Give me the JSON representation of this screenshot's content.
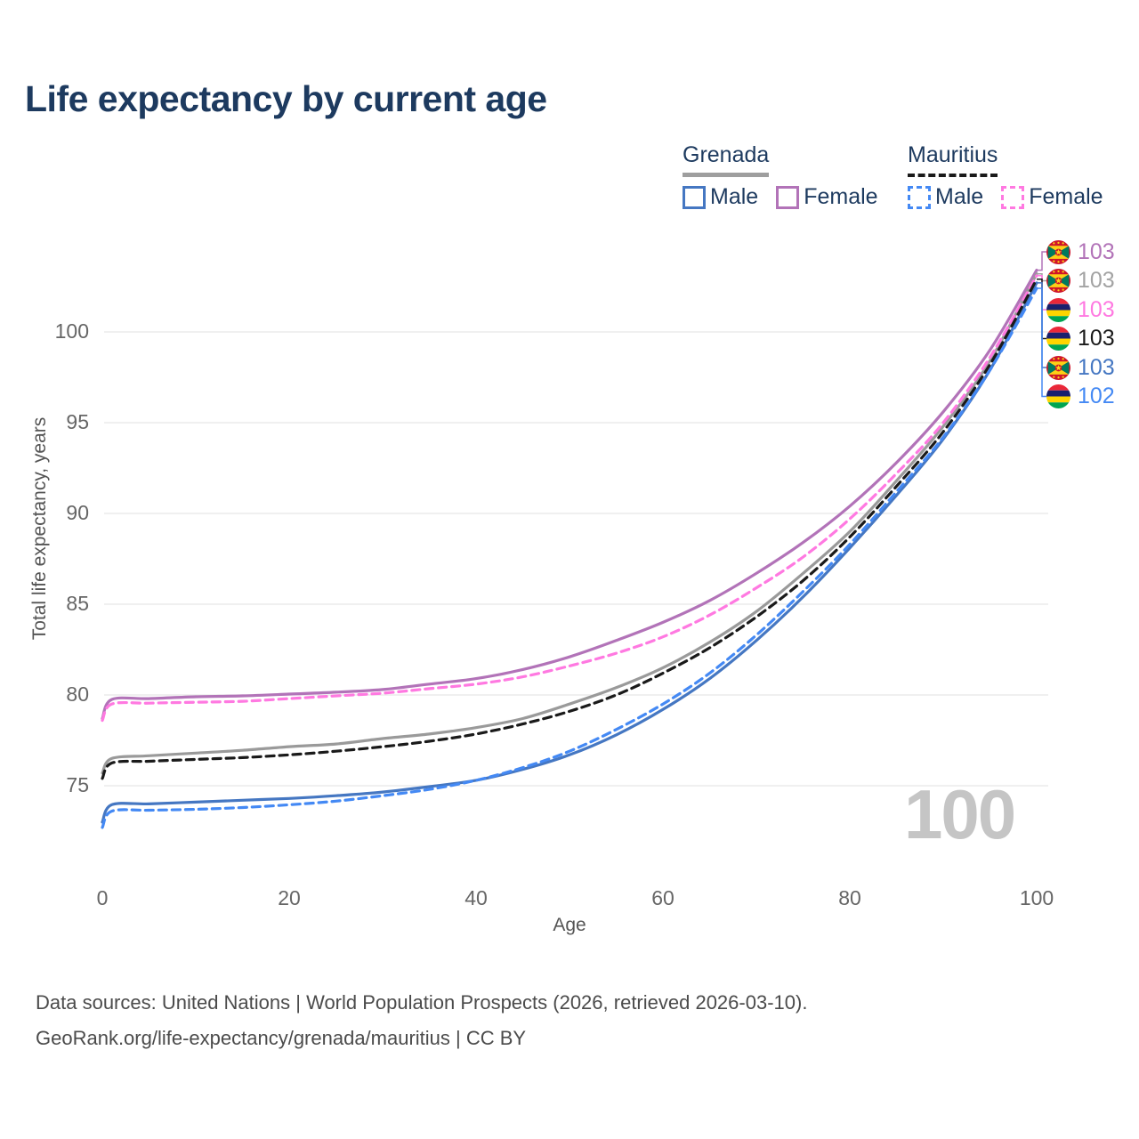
{
  "title": "Life expectancy by current age",
  "legend": {
    "groups": [
      {
        "label": "Grenada",
        "line_style": "solid",
        "underline_color": "#9e9e9e",
        "items": [
          {
            "label": "Male",
            "color": "#4577c2",
            "dashed": false
          },
          {
            "label": "Female",
            "color": "#b273b8",
            "dashed": false
          }
        ]
      },
      {
        "label": "Mauritius",
        "line_style": "dashed",
        "underline_color": "#1a1a1a",
        "items": [
          {
            "label": "Male",
            "color": "#4489f4",
            "dashed": true
          },
          {
            "label": "Female",
            "color": "#ff79e1",
            "dashed": true
          }
        ]
      }
    ]
  },
  "axes": {
    "x": {
      "title": "Age",
      "ticks": [
        0,
        20,
        40,
        60,
        80,
        100
      ]
    },
    "y": {
      "title": "Total life expectancy, years",
      "ticks": [
        75,
        80,
        85,
        90,
        95,
        100
      ]
    }
  },
  "age_indicator": "100",
  "chart_data": {
    "type": "line",
    "title": "Life expectancy by current age",
    "xlabel": "Age",
    "ylabel": "Total life expectancy, years",
    "xlim": [
      0,
      100
    ],
    "ylim": [
      72,
      104
    ],
    "grid": "horizontal",
    "legend_position": "top-right",
    "x": [
      0,
      1,
      5,
      10,
      15,
      20,
      25,
      30,
      35,
      40,
      45,
      50,
      55,
      60,
      65,
      70,
      75,
      80,
      85,
      90,
      95,
      100
    ],
    "series": [
      {
        "name": "grenada-female",
        "country": "Grenada",
        "sex": "Female",
        "color": "#b273b8",
        "dashed": false,
        "values": [
          78.7,
          79.75,
          79.8,
          79.9,
          79.95,
          80.05,
          80.15,
          80.3,
          80.6,
          80.9,
          81.4,
          82.1,
          83.0,
          84.0,
          85.2,
          86.7,
          88.4,
          90.4,
          92.8,
          95.6,
          99.0,
          103.4
        ]
      },
      {
        "name": "grenada-total",
        "country": "Grenada",
        "sex": "Both",
        "color": "#9a9a9a",
        "dashed": false,
        "values": [
          75.7,
          76.5,
          76.65,
          76.8,
          76.95,
          77.15,
          77.3,
          77.6,
          77.85,
          78.2,
          78.7,
          79.5,
          80.4,
          81.5,
          82.9,
          84.6,
          86.7,
          89.0,
          91.8,
          94.8,
          98.4,
          103.2
        ]
      },
      {
        "name": "mauritius-female",
        "country": "Mauritius",
        "sex": "Female",
        "color": "#ff79e1",
        "dashed": true,
        "values": [
          78.6,
          79.5,
          79.55,
          79.6,
          79.65,
          79.8,
          79.95,
          80.1,
          80.35,
          80.6,
          81.0,
          81.6,
          82.3,
          83.2,
          84.4,
          85.9,
          87.6,
          89.7,
          92.2,
          95.0,
          98.6,
          103.1
        ]
      },
      {
        "name": "mauritius-total",
        "country": "Mauritius",
        "sex": "Both",
        "color": "#1a1a1a",
        "dashed": true,
        "values": [
          75.4,
          76.25,
          76.35,
          76.45,
          76.55,
          76.7,
          76.9,
          77.15,
          77.45,
          77.85,
          78.4,
          79.1,
          80.0,
          81.2,
          82.6,
          84.3,
          86.3,
          88.7,
          91.5,
          94.5,
          98.2,
          102.9
        ]
      },
      {
        "name": "grenada-male",
        "country": "Grenada",
        "sex": "Male",
        "color": "#4577c2",
        "dashed": false,
        "values": [
          73.0,
          73.95,
          74.0,
          74.1,
          74.2,
          74.3,
          74.45,
          74.65,
          74.95,
          75.3,
          75.9,
          76.7,
          77.8,
          79.2,
          80.9,
          83.0,
          85.4,
          88.1,
          91.0,
          94.1,
          97.9,
          102.7
        ]
      },
      {
        "name": "mauritius-male",
        "country": "Mauritius",
        "sex": "Male",
        "color": "#4489f4",
        "dashed": true,
        "values": [
          72.7,
          73.6,
          73.65,
          73.7,
          73.8,
          73.95,
          74.15,
          74.45,
          74.8,
          75.3,
          76.0,
          76.9,
          78.1,
          79.5,
          81.2,
          83.3,
          85.7,
          88.3,
          91.2,
          94.2,
          97.9,
          102.4
        ]
      }
    ]
  },
  "end_labels": [
    {
      "series": "grenada-female",
      "flag": "grenada",
      "value": "103",
      "color": "#b273b8"
    },
    {
      "series": "grenada-total",
      "flag": "grenada",
      "value": "103",
      "color": "#a3a3a3"
    },
    {
      "series": "mauritius-female",
      "flag": "mauritius",
      "value": "103",
      "color": "#ff79e1"
    },
    {
      "series": "mauritius-total",
      "flag": "mauritius",
      "value": "103",
      "color": "#1a1a1a"
    },
    {
      "series": "grenada-male",
      "flag": "grenada",
      "value": "103",
      "color": "#4577c2"
    },
    {
      "series": "mauritius-male",
      "flag": "mauritius",
      "value": "102",
      "color": "#4489f4"
    }
  ],
  "footer": {
    "line1": "Data sources: United Nations | World Population Prospects (2026, retrieved 2026-03-10).",
    "line2": "GeoRank.org/life-expectancy/grenada/mauritius | CC BY"
  }
}
